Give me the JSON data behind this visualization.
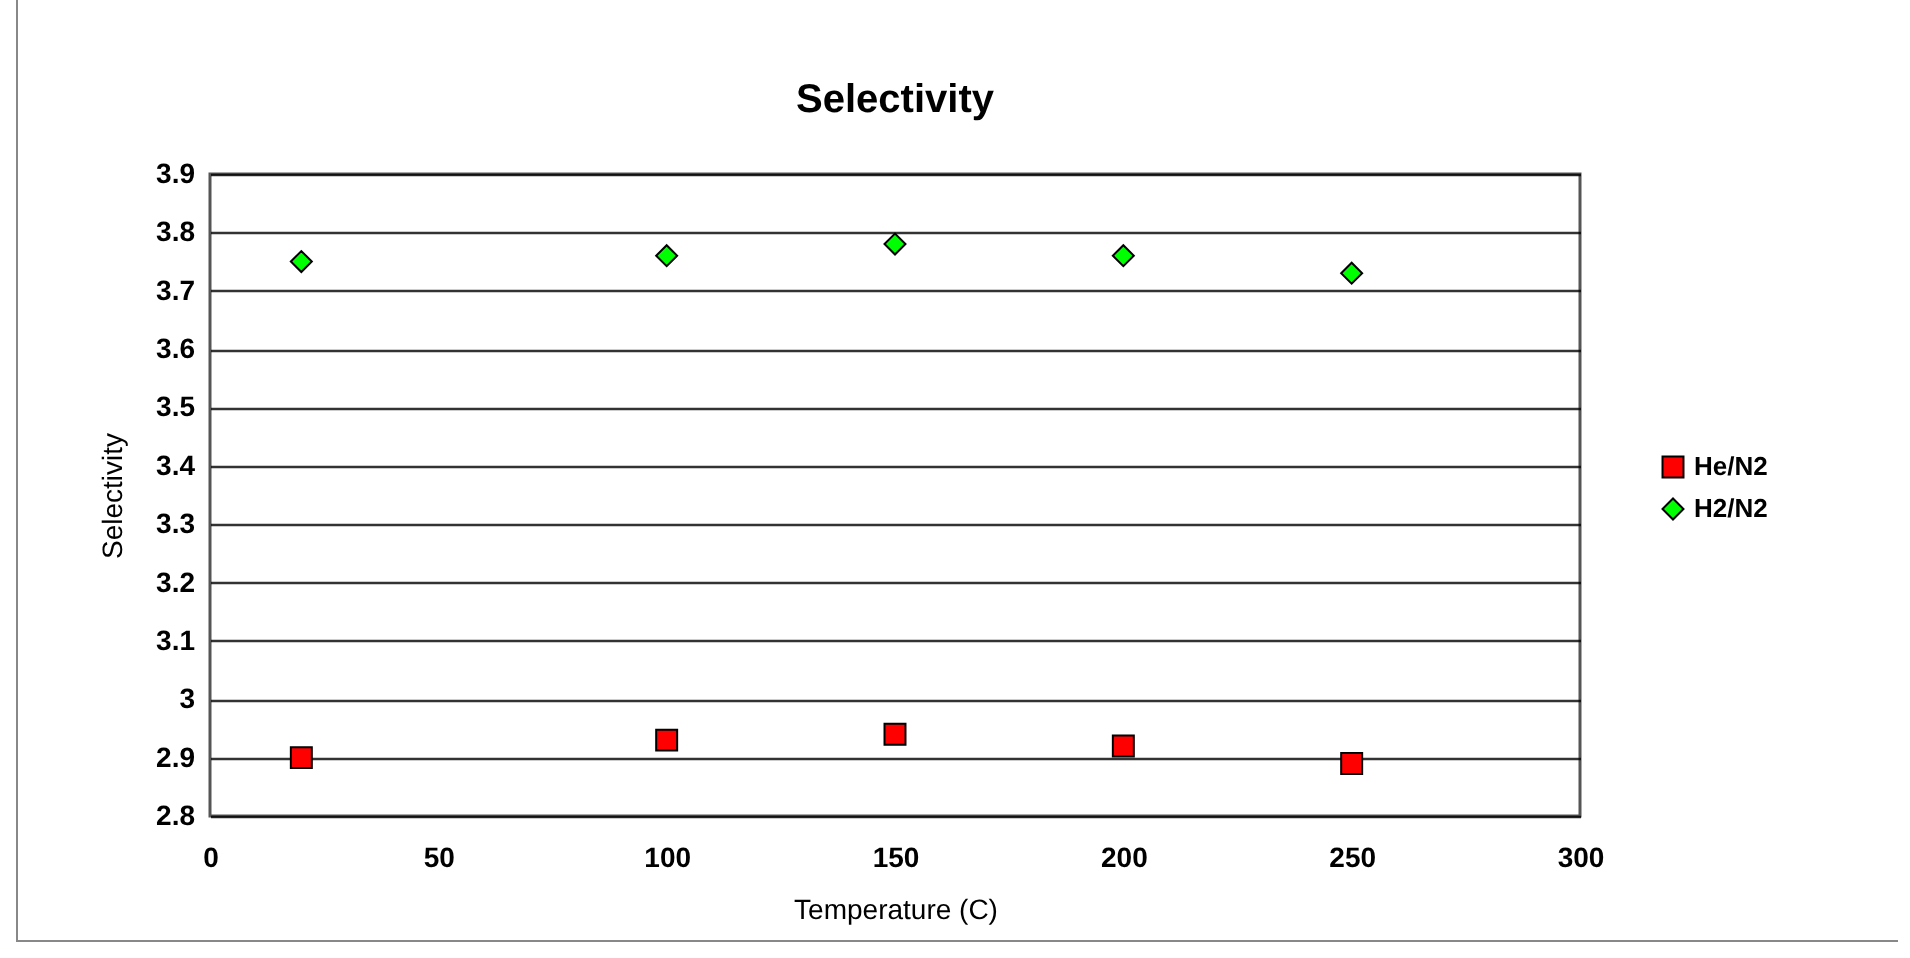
{
  "chart_data": {
    "type": "scatter",
    "title": "Selectivity",
    "xlabel": "Temperature (C)",
    "ylabel": "Selectivity",
    "x": [
      20,
      100,
      150,
      200,
      250
    ],
    "series": [
      {
        "name": "He/N2",
        "color": "#ff0000",
        "marker": "square",
        "values": [
          2.9,
          2.93,
          2.94,
          2.92,
          2.89
        ]
      },
      {
        "name": "H2/N2",
        "color": "#00ff00",
        "marker": "diamond",
        "values": [
          3.75,
          3.76,
          3.78,
          3.76,
          3.73
        ]
      }
    ],
    "xlim": [
      0,
      300
    ],
    "xticks": [
      0,
      50,
      100,
      150,
      200,
      250,
      300
    ],
    "ylim": [
      2.8,
      3.9
    ],
    "yticks": [
      2.8,
      2.9,
      3,
      3.1,
      3.2,
      3.3,
      3.4,
      3.5,
      3.6,
      3.7,
      3.8,
      3.9
    ],
    "grid": "y",
    "legend": "right"
  }
}
